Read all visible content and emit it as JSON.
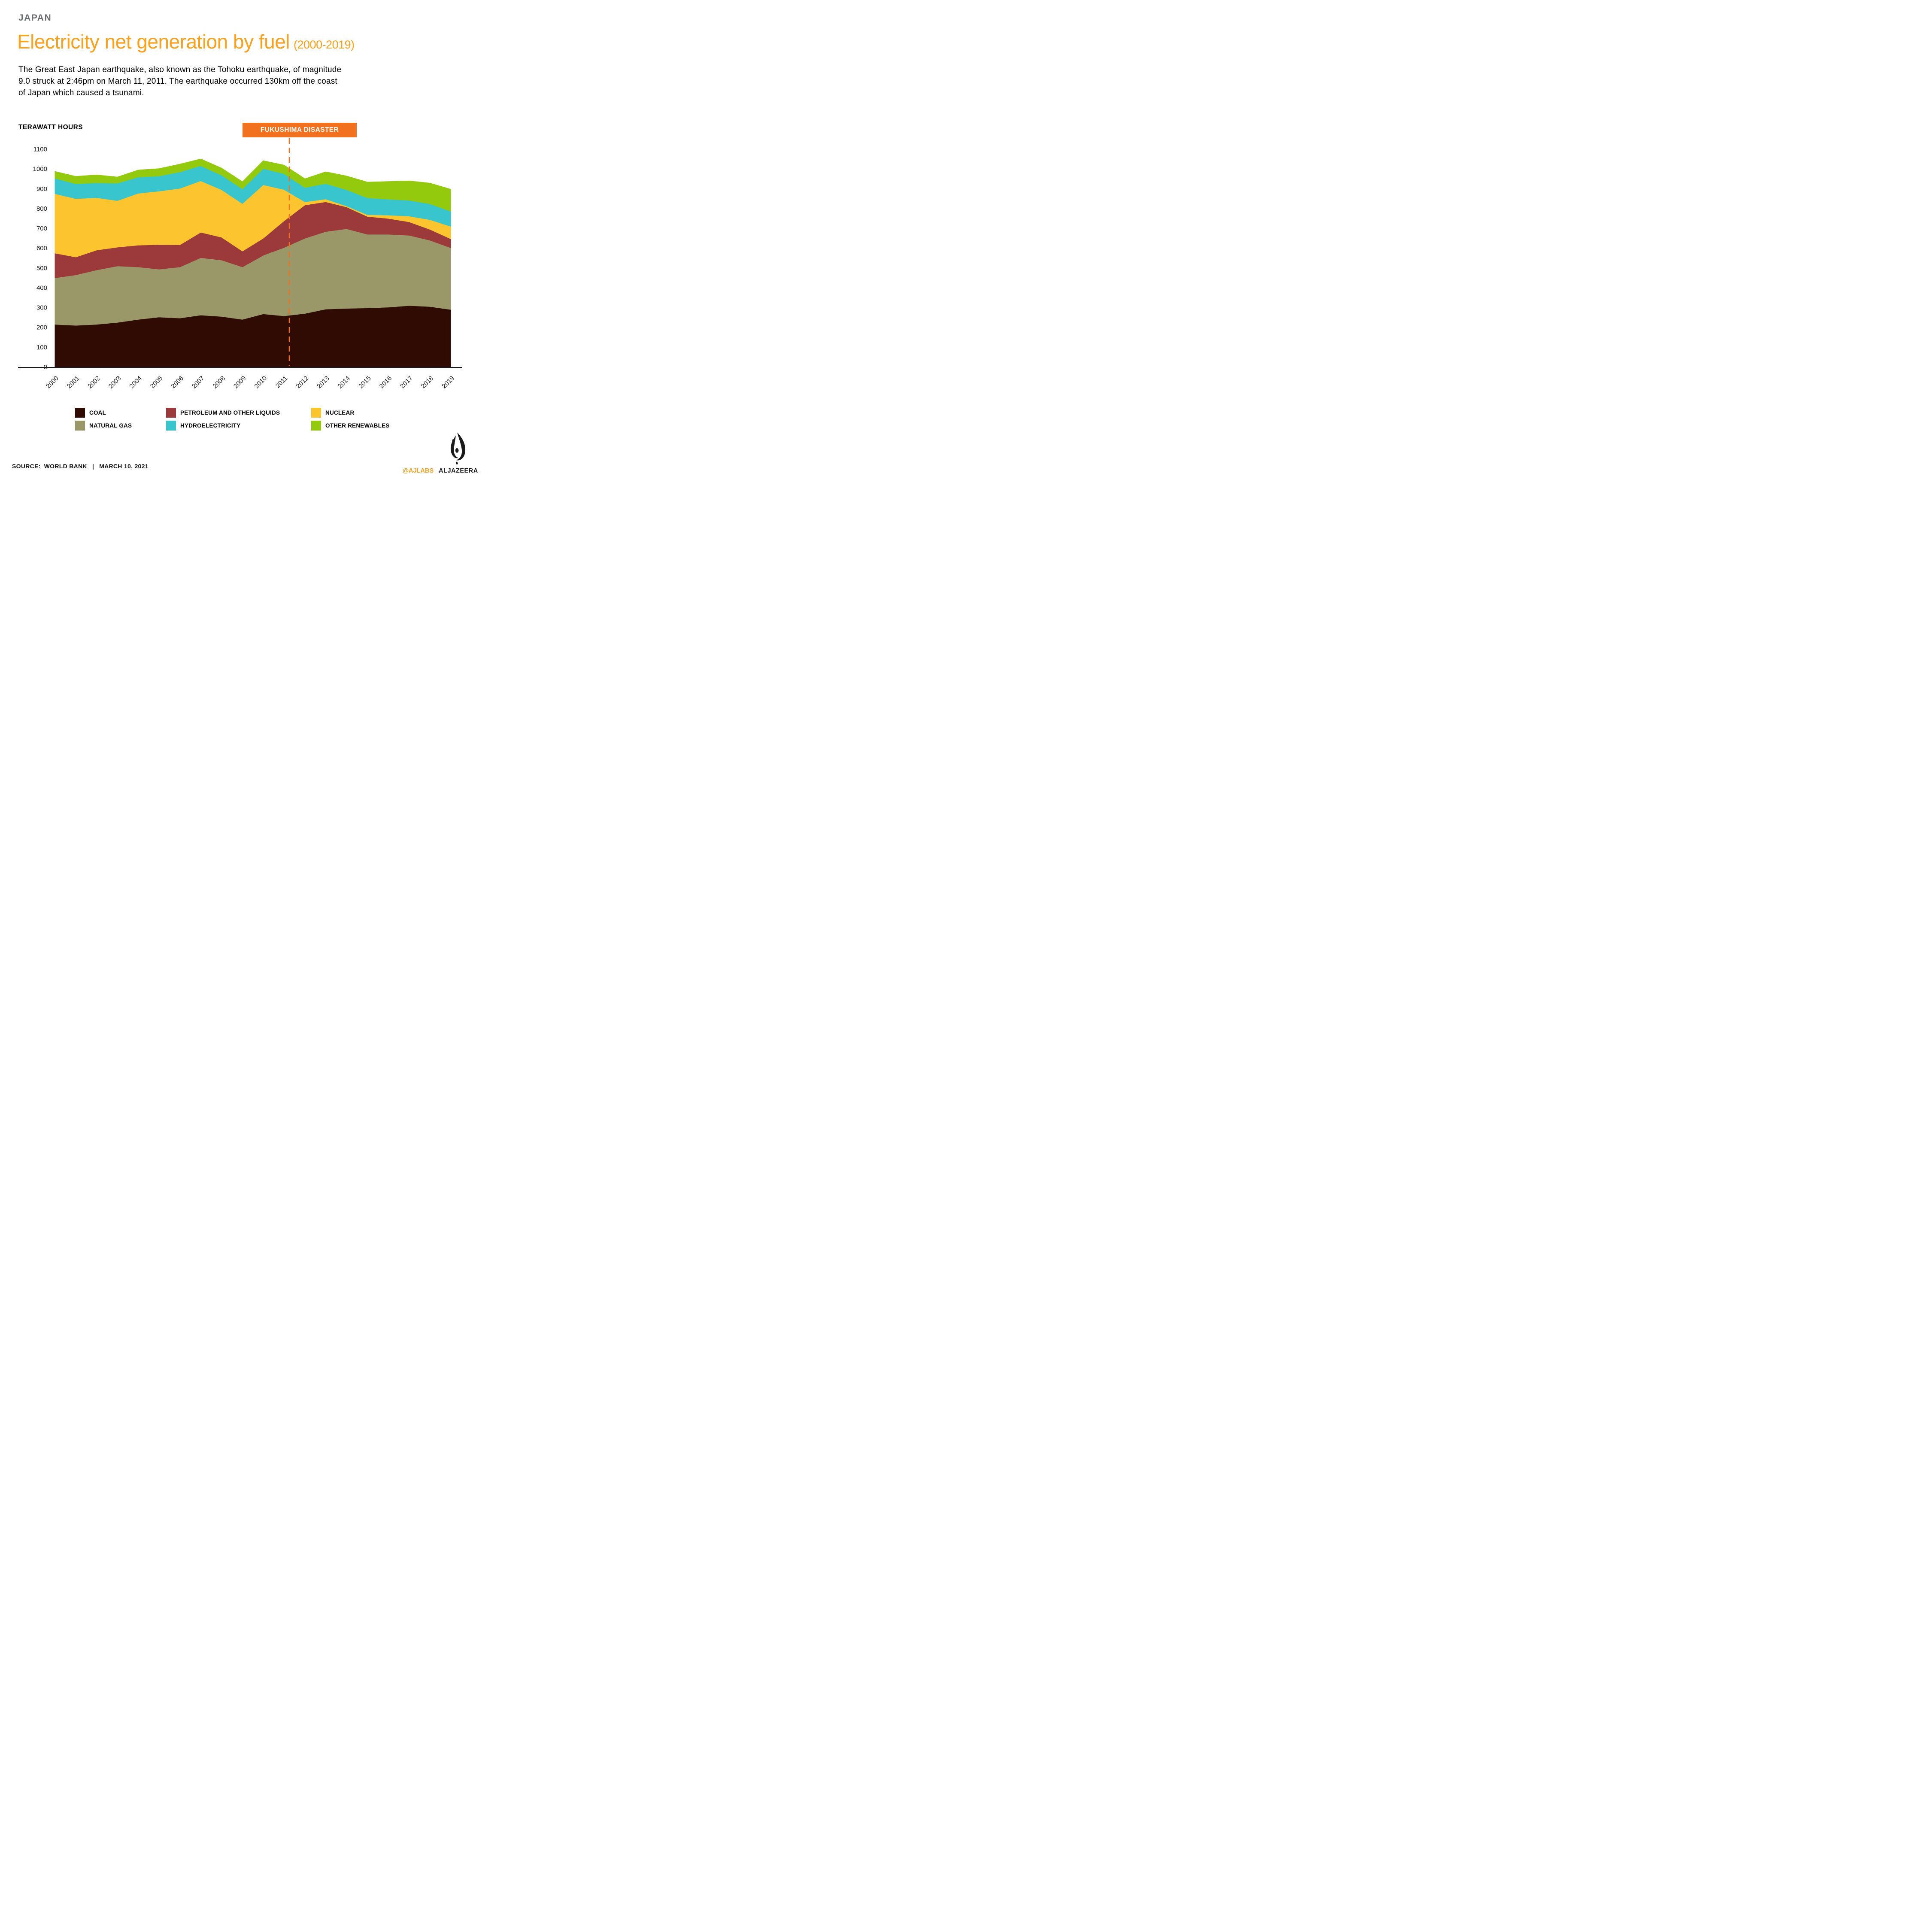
{
  "header": {
    "kicker": "JAPAN",
    "title": "Electricity net generation by fuel",
    "title_suffix": "(2000-2019)",
    "description": "The Great East Japan earthquake, also known as the Tohoku earthquake, of magnitude 9.0 struck at 2:46pm on March 11, 2011. The earthquake occurred 130km off the coast of Japan which caused a tsunami."
  },
  "chart": {
    "unit_label": "TERAWATT HOURS"
  },
  "chart_data": {
    "type": "area",
    "stacked": true,
    "title": "Electricity net generation by fuel (2000-2019)",
    "ylabel": "TERAWATT HOURS",
    "xlabel": "",
    "ylim": [
      0,
      1100
    ],
    "ytick_step": 100,
    "grid": false,
    "legend_position": "bottom",
    "x": [
      "2000",
      "2001",
      "2002",
      "2003",
      "2004",
      "2005",
      "2006",
      "2007",
      "2008",
      "2009",
      "2010",
      "2011",
      "2012",
      "2013",
      "2014",
      "2015",
      "2016",
      "2017",
      "2018",
      "2019"
    ],
    "series": [
      {
        "name": "COAL",
        "color": "#2f0b04",
        "values": [
          215,
          210,
          215,
          225,
          240,
          252,
          247,
          262,
          255,
          240,
          268,
          258,
          270,
          292,
          296,
          298,
          302,
          310,
          305,
          290
        ]
      },
      {
        "name": "NATURAL GAS",
        "color": "#9a9768",
        "values": [
          235,
          255,
          275,
          285,
          265,
          242,
          258,
          290,
          285,
          265,
          296,
          345,
          380,
          392,
          402,
          372,
          368,
          355,
          335,
          312
        ]
      },
      {
        "name": "PETROLEUM AND OTHER LIQUIDS",
        "color": "#9c393b",
        "values": [
          125,
          90,
          100,
          95,
          110,
          124,
          112,
          128,
          115,
          80,
          86,
          135,
          168,
          150,
          110,
          90,
          80,
          68,
          55,
          45
        ]
      },
      {
        "name": "NUCLEAR",
        "color": "#fcc530",
        "values": [
          300,
          295,
          265,
          235,
          262,
          270,
          285,
          260,
          240,
          240,
          270,
          158,
          16,
          14,
          5,
          9,
          17,
          29,
          49,
          63
        ]
      },
      {
        "name": "HYDROELECTRICITY",
        "color": "#38c5cd",
        "values": [
          78,
          75,
          75,
          88,
          82,
          76,
          83,
          76,
          74,
          74,
          82,
          80,
          72,
          78,
          82,
          85,
          80,
          80,
          80,
          76
        ]
      },
      {
        "name": "OTHER RENEWABLES",
        "color": "#94ca0d",
        "values": [
          35,
          38,
          40,
          32,
          36,
          38,
          40,
          35,
          36,
          37,
          40,
          44,
          45,
          60,
          70,
          80,
          90,
          98,
          105,
          112
        ]
      }
    ],
    "annotation": {
      "text": "FUKUSHIMA DISASTER",
      "x": 2011.25,
      "color": "#f2711e",
      "style": "dashed-vertical-line"
    }
  },
  "legend": {
    "items": [
      {
        "label": "COAL",
        "color": "#2f0b04"
      },
      {
        "label": "PETROLEUM AND OTHER LIQUIDS",
        "color": "#9c393b"
      },
      {
        "label": "NUCLEAR",
        "color": "#fcc530"
      },
      {
        "label": "NATURAL GAS",
        "color": "#9a9768"
      },
      {
        "label": "HYDROELECTRICITY",
        "color": "#38c5cd"
      },
      {
        "label": "OTHER RENEWABLES",
        "color": "#94ca0d"
      }
    ]
  },
  "footer": {
    "source_label": "SOURCE:",
    "source_value": "WORLD BANK",
    "separator": "|",
    "date": "MARCH 10, 2021",
    "handle": "@AJLABS",
    "brand": "ALJAZEERA"
  },
  "colors": {
    "title_orange": "#f9a01d",
    "badge_orange": "#f2711e",
    "kicker_gray": "#6d6e71",
    "axis_black": "#1a1a1a",
    "background": "#ffffff"
  }
}
